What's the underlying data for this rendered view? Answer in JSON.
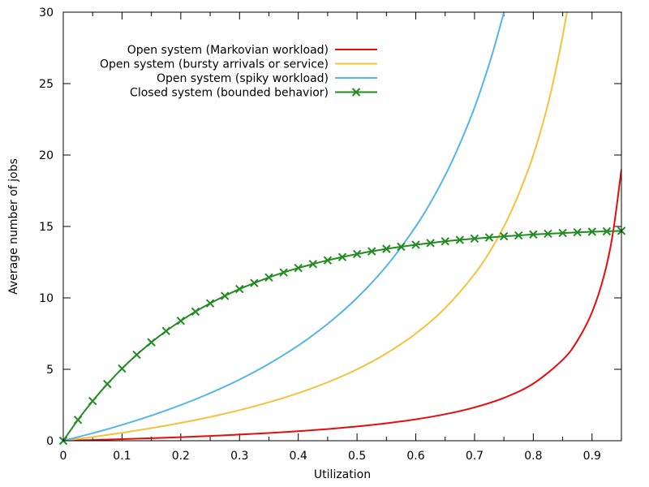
{
  "figure": {
    "background": "#ffffff",
    "border_color": "#000000",
    "text_color": "#000000",
    "grid": "off",
    "legend_position": "top-left-inside",
    "legend_text_align": "right"
  },
  "chart_data": {
    "type": "line",
    "title": "",
    "xlabel": "Utilization",
    "ylabel": "Average number of jobs",
    "xlim": [
      0,
      0.95
    ],
    "ylim": [
      0,
      30
    ],
    "x_tick_labels": [
      "0",
      "0.1",
      "0.2",
      "0.3",
      "0.4",
      "0.5",
      "0.6",
      "0.7",
      "0.8",
      "0.9"
    ],
    "x_ticks_major": [
      0,
      0.1,
      0.2,
      0.3,
      0.4,
      0.5,
      0.6,
      0.7,
      0.8,
      0.9
    ],
    "x_ticks_minor": [
      0.05,
      0.15,
      0.25,
      0.35,
      0.45,
      0.55,
      0.65,
      0.75,
      0.85
    ],
    "y_tick_labels": [
      "0",
      "5",
      "10",
      "15",
      "20",
      "25",
      "30"
    ],
    "y_ticks_major": [
      0,
      5,
      10,
      15,
      20,
      25,
      30
    ],
    "series": [
      {
        "name": "Open system (Markovian workload)",
        "color": "#e60c0c",
        "marker": "none",
        "points": [
          [
            0,
            0
          ],
          [
            0.05,
            0.053
          ],
          [
            0.1,
            0.111
          ],
          [
            0.15,
            0.176
          ],
          [
            0.2,
            0.25
          ],
          [
            0.25,
            0.333
          ],
          [
            0.3,
            0.429
          ],
          [
            0.35,
            0.538
          ],
          [
            0.4,
            0.667
          ],
          [
            0.45,
            0.818
          ],
          [
            0.5,
            1
          ],
          [
            0.55,
            1.222
          ],
          [
            0.6,
            1.5
          ],
          [
            0.65,
            1.857
          ],
          [
            0.7,
            2.333
          ],
          [
            0.75,
            3
          ],
          [
            0.8,
            4
          ],
          [
            0.85,
            5.667
          ],
          [
            0.875,
            7
          ],
          [
            0.9,
            9
          ],
          [
            0.92,
            11.5
          ],
          [
            0.935,
            14.385
          ],
          [
            0.95,
            19
          ]
        ]
      },
      {
        "name": "Open system (bursty arrivals or service)",
        "color": "#f4c23a",
        "marker": "none",
        "points": [
          [
            0,
            0
          ],
          [
            0.05,
            0.263
          ],
          [
            0.1,
            0.556
          ],
          [
            0.15,
            0.882
          ],
          [
            0.2,
            1.25
          ],
          [
            0.25,
            1.667
          ],
          [
            0.3,
            2.143
          ],
          [
            0.35,
            2.692
          ],
          [
            0.4,
            3.333
          ],
          [
            0.45,
            4.091
          ],
          [
            0.5,
            5
          ],
          [
            0.55,
            6.111
          ],
          [
            0.6,
            7.5
          ],
          [
            0.65,
            9.286
          ],
          [
            0.7,
            11.667
          ],
          [
            0.73,
            13.519
          ],
          [
            0.76,
            15.833
          ],
          [
            0.79,
            18.81
          ],
          [
            0.81,
            21.316
          ],
          [
            0.83,
            24.412
          ],
          [
            0.85,
            28.333
          ],
          [
            0.862,
            31.225
          ]
        ]
      },
      {
        "name": "Open system (spiky workload)",
        "color": "#56b4e9",
        "marker": "none",
        "points": [
          [
            0,
            0
          ],
          [
            0.05,
            0.526
          ],
          [
            0.1,
            1.111
          ],
          [
            0.15,
            1.765
          ],
          [
            0.2,
            2.5
          ],
          [
            0.25,
            3.333
          ],
          [
            0.3,
            4.286
          ],
          [
            0.35,
            5.385
          ],
          [
            0.4,
            6.667
          ],
          [
            0.45,
            8.182
          ],
          [
            0.5,
            10
          ],
          [
            0.55,
            12.222
          ],
          [
            0.6,
            15
          ],
          [
            0.63,
            17.027
          ],
          [
            0.66,
            19.412
          ],
          [
            0.69,
            22.258
          ],
          [
            0.71,
            24.483
          ],
          [
            0.73,
            27.037
          ],
          [
            0.75,
            30
          ],
          [
            0.76,
            31.667
          ]
        ]
      },
      {
        "name": "Closed system (bounded behavior)",
        "color": "#228b22",
        "marker": "x",
        "points": [
          [
            0,
            0
          ],
          [
            0.025,
            1.46
          ],
          [
            0.05,
            2.78
          ],
          [
            0.075,
            3.97
          ],
          [
            0.1,
            5.05
          ],
          [
            0.125,
            6.02
          ],
          [
            0.15,
            6.89
          ],
          [
            0.175,
            7.68
          ],
          [
            0.2,
            8.39
          ],
          [
            0.225,
            9.04
          ],
          [
            0.25,
            9.62
          ],
          [
            0.275,
            10.14
          ],
          [
            0.3,
            10.62
          ],
          [
            0.325,
            11.04
          ],
          [
            0.35,
            11.43
          ],
          [
            0.375,
            11.78
          ],
          [
            0.4,
            12.09
          ],
          [
            0.425,
            12.37
          ],
          [
            0.45,
            12.63
          ],
          [
            0.475,
            12.86
          ],
          [
            0.5,
            13.07
          ],
          [
            0.525,
            13.26
          ],
          [
            0.55,
            13.43
          ],
          [
            0.575,
            13.58
          ],
          [
            0.6,
            13.72
          ],
          [
            0.625,
            13.84
          ],
          [
            0.65,
            13.96
          ],
          [
            0.675,
            14.06
          ],
          [
            0.7,
            14.15
          ],
          [
            0.725,
            14.23
          ],
          [
            0.75,
            14.31
          ],
          [
            0.775,
            14.37
          ],
          [
            0.8,
            14.44
          ],
          [
            0.825,
            14.49
          ],
          [
            0.85,
            14.54
          ],
          [
            0.875,
            14.59
          ],
          [
            0.9,
            14.63
          ],
          [
            0.925,
            14.66
          ],
          [
            0.95,
            14.69
          ]
        ]
      }
    ]
  }
}
